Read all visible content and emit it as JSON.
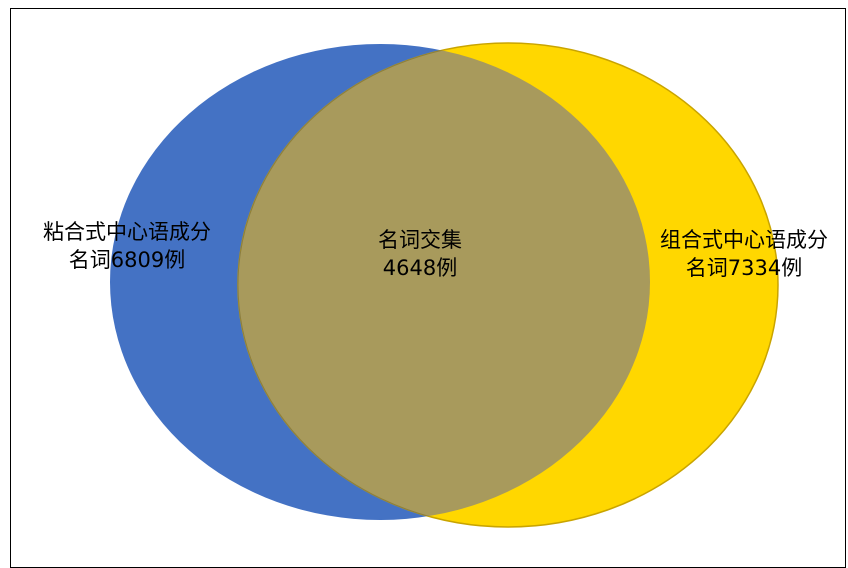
{
  "diagram": {
    "type": "venn",
    "sets": [
      {
        "id": "left",
        "line1": "粘合式中心语成分",
        "line2": "名词6809例",
        "count": 6809,
        "color": "#4472C4"
      },
      {
        "id": "right",
        "line1": "组合式中心语成分",
        "line2": "名词7334例",
        "count": 7334,
        "color": "#FFD700"
      }
    ],
    "intersection": {
      "line1": "名词交集",
      "line2": "4648例",
      "count": 4648,
      "color": "#A89A5C"
    }
  }
}
